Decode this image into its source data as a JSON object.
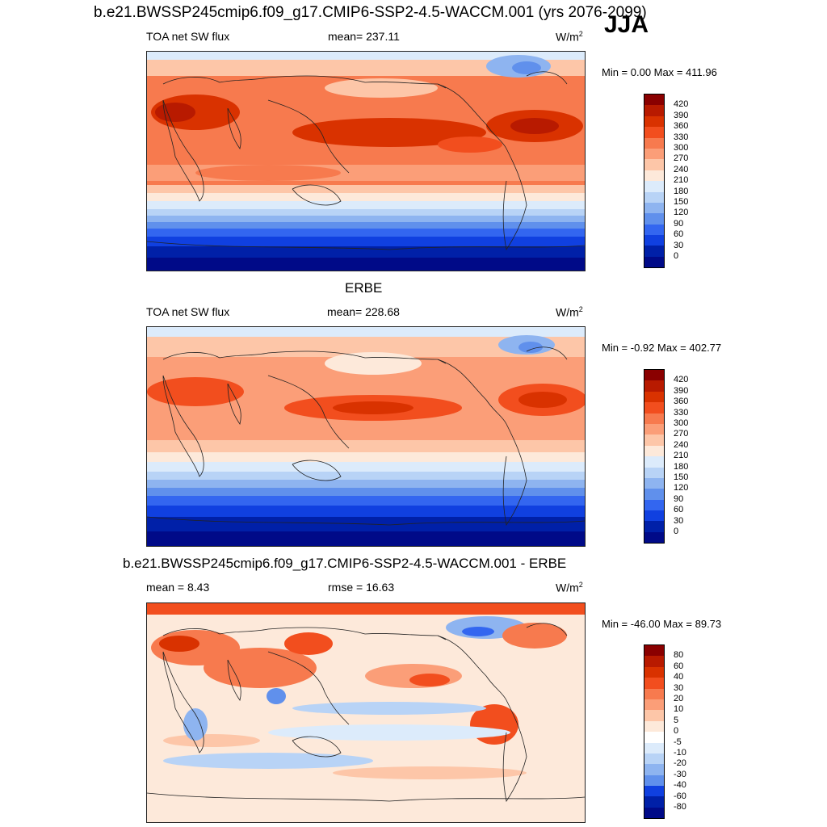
{
  "title": "b.e21.BWSSP245cmip6.f09_g17.CMIP6-SSP2-4.5-WACCM.001 (yrs 2076-2099)",
  "season": "JJA",
  "panels": [
    {
      "title": "",
      "left": "TOA net SW flux",
      "center": "mean= 237.11",
      "units_base": "W/m",
      "units_sup": "2",
      "minmax": "Min =   0.00 Max = 411.96",
      "colorbar": {
        "labels": [
          "420",
          "390",
          "360",
          "330",
          "300",
          "270",
          "240",
          "210",
          "180",
          "150",
          "120",
          "90",
          "60",
          "30",
          "0"
        ],
        "colors": [
          "#8a0000",
          "#b81a00",
          "#d93200",
          "#f24e1e",
          "#f77a4e",
          "#fb9e78",
          "#fdc6a8",
          "#fde9da",
          "#dcebfb",
          "#b8d3f6",
          "#8eb4f0",
          "#6090ec",
          "#3366f0",
          "#1040e0",
          "#0020a8",
          "#000a88"
        ]
      }
    },
    {
      "title": "ERBE",
      "left": "TOA net SW flux",
      "center": "mean= 228.68",
      "units_base": "W/m",
      "units_sup": "2",
      "minmax": "Min =  -0.92 Max = 402.77",
      "colorbar": {
        "labels": [
          "420",
          "390",
          "360",
          "330",
          "300",
          "270",
          "240",
          "210",
          "180",
          "150",
          "120",
          "90",
          "60",
          "30",
          "0"
        ],
        "colors": [
          "#8a0000",
          "#b81a00",
          "#d93200",
          "#f24e1e",
          "#f77a4e",
          "#fb9e78",
          "#fdc6a8",
          "#fde9da",
          "#dcebfb",
          "#b8d3f6",
          "#8eb4f0",
          "#6090ec",
          "#3366f0",
          "#1040e0",
          "#0020a8",
          "#000a88"
        ]
      }
    },
    {
      "title": "b.e21.BWSSP245cmip6.f09_g17.CMIP6-SSP2-4.5-WACCM.001 - ERBE",
      "left": "mean =   8.43",
      "center": "rmse =  16.63",
      "units_base": "W/m",
      "units_sup": "2",
      "minmax": "Min = -46.00 Max =  89.73",
      "colorbar": {
        "labels": [
          "80",
          "60",
          "40",
          "30",
          "20",
          "10",
          "5",
          "0",
          "-5",
          "-10",
          "-20",
          "-30",
          "-40",
          "-60",
          "-80"
        ],
        "colors": [
          "#8a0000",
          "#b81a00",
          "#d93200",
          "#f24e1e",
          "#f77a4e",
          "#fb9e78",
          "#fdc6a8",
          "#fde9da",
          "#ffffff",
          "#dcebfb",
          "#b8d3f6",
          "#8eb4f0",
          "#6090ec",
          "#1040e0",
          "#0020a8",
          "#000a88"
        ]
      }
    }
  ]
}
